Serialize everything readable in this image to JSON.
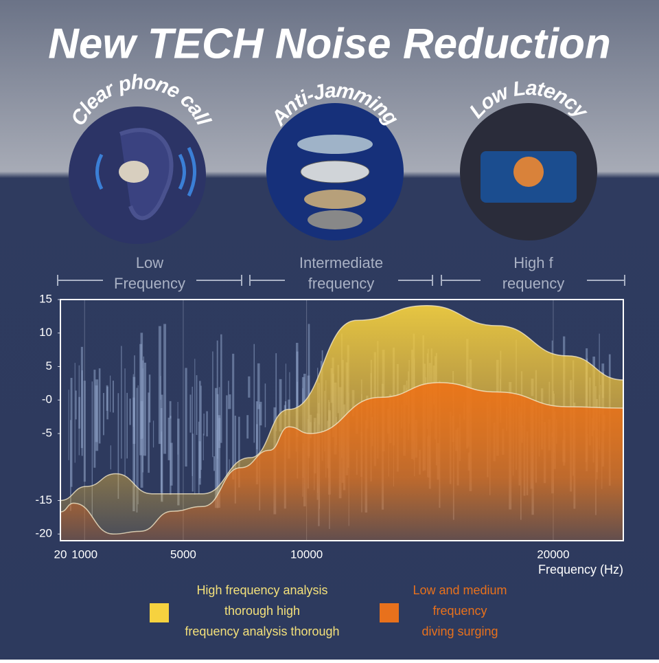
{
  "header": {
    "title": "New TECH Noise Reduction"
  },
  "features": [
    {
      "label": "Clear phone call"
    },
    {
      "label": "Anti-Jamming"
    },
    {
      "label": "Low Latency"
    }
  ],
  "bands": [
    {
      "lines": [
        "Low",
        "Frequency"
      ]
    },
    {
      "lines": [
        "Intermediate",
        "frequency"
      ]
    },
    {
      "lines": [
        "High f",
        "requency"
      ]
    }
  ],
  "chart_data": {
    "type": "area",
    "x_label": "Frequency (Hz)",
    "xlim": [
      20,
      22840
    ],
    "xticks": [
      20,
      1000,
      5000,
      10000,
      20000
    ],
    "ylim": [
      -21,
      15
    ],
    "yticks": [
      15,
      10,
      5,
      {
        "value": 0,
        "label": "-0"
      },
      -5,
      -15,
      -20
    ],
    "series": [
      {
        "name": [
          "High frequency analysis",
          "thorough high",
          "frequency analysis thorough"
        ],
        "color": "#f6d23f",
        "x": [
          20,
          1065,
          2270,
          3730,
          5780,
          7720,
          9280,
          12040,
          14880,
          17720,
          20570,
          22840
        ],
        "values": [
          -15,
          -12.9,
          -11,
          -14,
          -14,
          -8.6,
          -1.4,
          11.9,
          14.1,
          11.1,
          6.6,
          3
        ]
      },
      {
        "name": [
          "Low and medium",
          "frequency",
          "diving surging"
        ],
        "color": "#e8711c",
        "x": [
          20,
          557,
          2160,
          3250,
          4560,
          5780,
          7330,
          8500,
          9280,
          10140,
          12990,
          15360,
          17720,
          20570,
          22840
        ],
        "values": [
          -16.7,
          -15.4,
          -20,
          -19.6,
          -16.6,
          -15.9,
          -10.1,
          -7.5,
          -4,
          -5,
          0.4,
          2.6,
          1.2,
          -1,
          -1.2
        ]
      }
    ]
  }
}
